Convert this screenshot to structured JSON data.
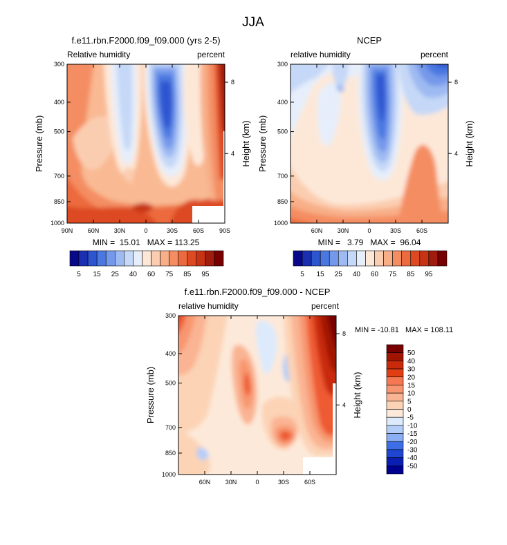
{
  "page": {
    "title": "JJA"
  },
  "palettes": {
    "abs": [
      "#08088a",
      "#1a30b0",
      "#2d55d0",
      "#4a78e0",
      "#7498ea",
      "#9ebaf2",
      "#c6d8f7",
      "#e6eefb",
      "#fde8d8",
      "#fbcdb0",
      "#f8af88",
      "#f48d62",
      "#ec6a3e",
      "#dd4a22",
      "#c63414",
      "#a01c0c",
      "#780000"
    ],
    "diff": [
      "#000090",
      "#0a1eb4",
      "#1e46d2",
      "#3c6ee6",
      "#648ef0",
      "#8caef4",
      "#b4cdf8",
      "#dceafc",
      "#fde9d9",
      "#fcd3b5",
      "#fab493",
      "#f79670",
      "#f47852",
      "#ee5a32",
      "#e23e14",
      "#c82a0a",
      "#a01402",
      "#780000"
    ],
    "white": "#ffffff"
  },
  "chart_data": [
    {
      "type": "heatmap",
      "title": "f.e11.rbn.F2000.f09_f09.000 (yrs 2-5)",
      "left_label": "Relative humidity",
      "right_label": "percent",
      "ylabel": "Pressure (mb)",
      "y2label": "Height (km)",
      "min_max": "MIN =  15.01   MAX = 113.25",
      "x_ticks": [
        {
          "v": 90,
          "label": "90N"
        },
        {
          "v": 60,
          "label": "60N"
        },
        {
          "v": 30,
          "label": "30N"
        },
        {
          "v": 0,
          "label": "0"
        },
        {
          "v": -30,
          "label": "30S"
        },
        {
          "v": -60,
          "label": "60S"
        },
        {
          "v": -90,
          "label": "90S"
        }
      ],
      "y_ticks": [
        {
          "v": 300,
          "label": "300"
        },
        {
          "v": 400,
          "label": "400"
        },
        {
          "v": 500,
          "label": "500"
        },
        {
          "v": 700,
          "label": "700"
        },
        {
          "v": 850,
          "label": "850"
        },
        {
          "v": 1000,
          "label": "1000"
        }
      ],
      "y2_ticks": [
        {
          "v": 8,
          "label": "8"
        },
        {
          "v": 4,
          "label": "4"
        }
      ],
      "xlim": [
        90,
        -90
      ],
      "ylim": [
        300,
        1000
      ],
      "colorbar_labels": [
        "5",
        "15",
        "25",
        "40",
        "60",
        "75",
        "85",
        "95"
      ]
    },
    {
      "type": "heatmap",
      "title": "NCEP",
      "left_label": "relative humidity",
      "right_label": "percent",
      "ylabel": "Pressure (mb)",
      "y2label": "Height (km)",
      "min_max": "MIN =   3.79   MAX =  96.04",
      "x_ticks": [
        {
          "v": 60,
          "label": "60N"
        },
        {
          "v": 30,
          "label": "30N"
        },
        {
          "v": 0,
          "label": "0"
        },
        {
          "v": -30,
          "label": "30S"
        },
        {
          "v": -60,
          "label": "60S"
        }
      ],
      "y_ticks": [
        {
          "v": 300,
          "label": "300"
        },
        {
          "v": 400,
          "label": "400"
        },
        {
          "v": 500,
          "label": "500"
        },
        {
          "v": 700,
          "label": "700"
        },
        {
          "v": 850,
          "label": "850"
        },
        {
          "v": 1000,
          "label": "1000"
        }
      ],
      "y2_ticks": [
        {
          "v": 8,
          "label": "8"
        },
        {
          "v": 4,
          "label": "4"
        }
      ],
      "xlim": [
        90,
        -90
      ],
      "ylim": [
        300,
        1000
      ],
      "colorbar_labels": [
        "5",
        "15",
        "25",
        "40",
        "60",
        "75",
        "85",
        "95"
      ]
    },
    {
      "type": "heatmap",
      "title": "f.e11.rbn.F2000.f09_f09.000 - NCEP",
      "left_label": "relative humidity",
      "right_label": "percent",
      "ylabel": "Pressure (mb)",
      "y2label": "Height (km)",
      "min_max": "MIN = -10.81   MAX = 108.11",
      "x_ticks": [
        {
          "v": 60,
          "label": "60N"
        },
        {
          "v": 30,
          "label": "30N"
        },
        {
          "v": 0,
          "label": "0"
        },
        {
          "v": -30,
          "label": "30S"
        },
        {
          "v": -60,
          "label": "60S"
        }
      ],
      "y_ticks": [
        {
          "v": 300,
          "label": "300"
        },
        {
          "v": 400,
          "label": "400"
        },
        {
          "v": 500,
          "label": "500"
        },
        {
          "v": 700,
          "label": "700"
        },
        {
          "v": 850,
          "label": "850"
        },
        {
          "v": 1000,
          "label": "1000"
        }
      ],
      "y2_ticks": [
        {
          "v": 8,
          "label": "8"
        },
        {
          "v": 4,
          "label": "4"
        }
      ],
      "xlim": [
        90,
        -90
      ],
      "ylim": [
        300,
        1000
      ],
      "colorbar_labels": [
        "50",
        "40",
        "30",
        "20",
        "15",
        "10",
        "5",
        "0",
        "-5",
        "-10",
        "-15",
        "-20",
        "-30",
        "-40",
        "-50"
      ]
    }
  ]
}
